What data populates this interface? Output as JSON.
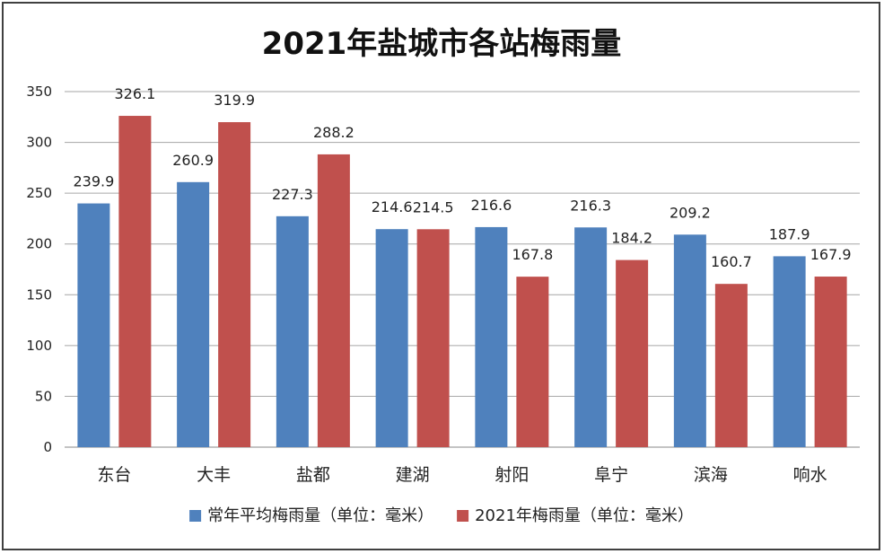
{
  "chart_data": {
    "type": "bar",
    "title": "2021年盐城市各站梅雨量",
    "xlabel": "",
    "ylabel": "",
    "ylim": [
      0,
      350
    ],
    "yticks": [
      0,
      50,
      100,
      150,
      200,
      250,
      300,
      350
    ],
    "grid": true,
    "legend_position": "bottom",
    "categories": [
      "东台",
      "大丰",
      "盐都",
      "建湖",
      "射阳",
      "阜宁",
      "滨海",
      "响水"
    ],
    "series": [
      {
        "name": "常年平均梅雨量（单位：毫米）",
        "color": "#4f81bd",
        "values": [
          239.9,
          260.9,
          227.3,
          214.6,
          216.6,
          216.3,
          209.2,
          187.9
        ]
      },
      {
        "name": "2021年梅雨量（单位：毫米）",
        "color": "#c0504d",
        "values": [
          326.1,
          319.9,
          288.2,
          214.5,
          167.8,
          184.2,
          160.7,
          167.9
        ]
      }
    ]
  }
}
